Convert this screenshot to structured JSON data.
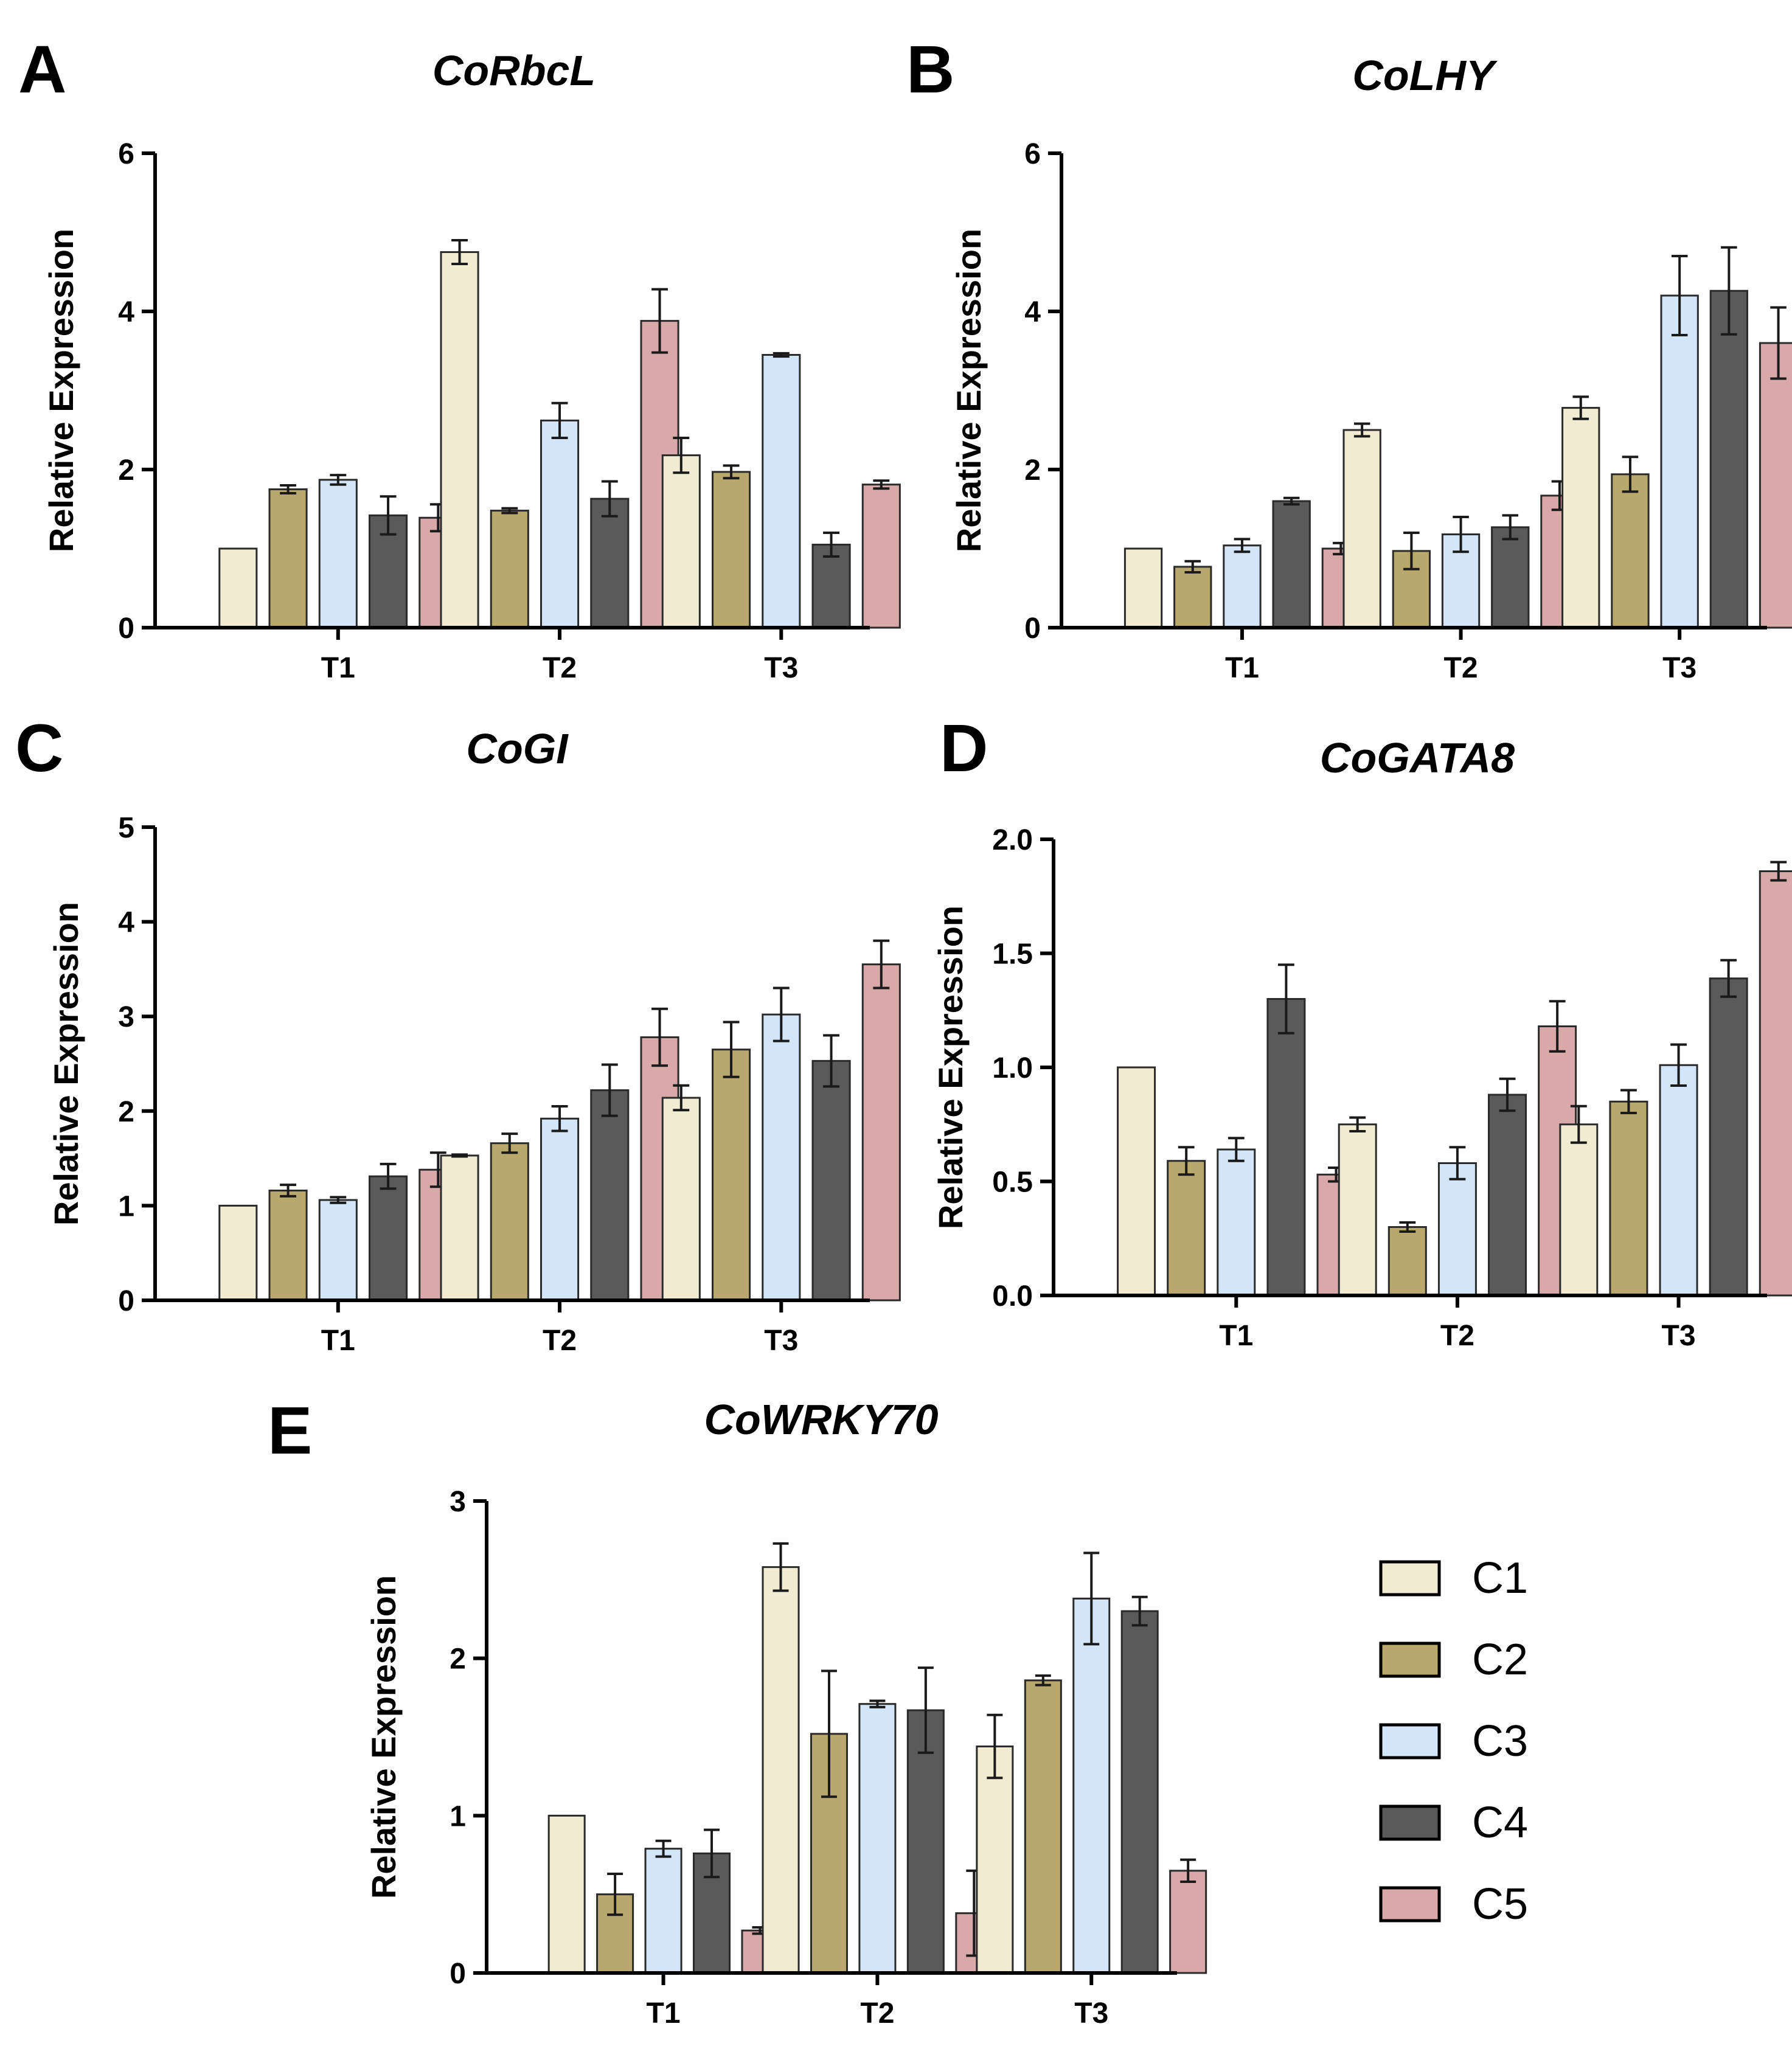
{
  "legend": {
    "entries": [
      {
        "label": "C1",
        "color": "#F1EBD2"
      },
      {
        "label": "C2",
        "color": "#B9A86C"
      },
      {
        "label": "C3",
        "color": "#D3E5F8"
      },
      {
        "label": "C4",
        "color": "#5A5A5A"
      },
      {
        "label": "C5",
        "color": "#D9A9A9"
      }
    ]
  },
  "chart_data": [
    {
      "panel": "A",
      "type": "bar",
      "title": "CoRbcL",
      "xlabel": "",
      "ylabel": "Relative Expression",
      "ylim": [
        0,
        6
      ],
      "yticks": [
        "0",
        "2",
        "4",
        "6"
      ],
      "yticks_values": [
        0,
        2,
        4,
        6
      ],
      "categories": [
        "T1",
        "T2",
        "T3"
      ],
      "series": [
        {
          "name": "C1",
          "values": [
            1.0,
            4.75,
            2.18
          ],
          "errors": [
            0,
            0.15,
            0.22
          ]
        },
        {
          "name": "C2",
          "values": [
            1.75,
            1.48,
            1.97
          ],
          "errors": [
            0.05,
            0.03,
            0.08
          ]
        },
        {
          "name": "C3",
          "values": [
            1.87,
            2.62,
            3.45
          ],
          "errors": [
            0.06,
            0.22,
            0.02
          ]
        },
        {
          "name": "C4",
          "values": [
            1.42,
            1.63,
            1.05
          ],
          "errors": [
            0.24,
            0.22,
            0.15
          ]
        },
        {
          "name": "C5",
          "values": [
            1.39,
            3.88,
            1.81
          ],
          "errors": [
            0.17,
            0.4,
            0.05
          ]
        }
      ]
    },
    {
      "panel": "B",
      "type": "bar",
      "title": "CoLHY",
      "xlabel": "",
      "ylabel": "Relative Expression",
      "ylim": [
        0,
        6
      ],
      "yticks": [
        "0",
        "2",
        "4",
        "6"
      ],
      "yticks_values": [
        0,
        2,
        4,
        6
      ],
      "categories": [
        "T1",
        "T2",
        "T3"
      ],
      "series": [
        {
          "name": "C1",
          "values": [
            1.0,
            2.5,
            2.78
          ],
          "errors": [
            0,
            0.08,
            0.14
          ]
        },
        {
          "name": "C2",
          "values": [
            0.77,
            0.97,
            1.94
          ],
          "errors": [
            0.07,
            0.23,
            0.22
          ]
        },
        {
          "name": "C3",
          "values": [
            1.04,
            1.18,
            4.2
          ],
          "errors": [
            0.08,
            0.22,
            0.5
          ]
        },
        {
          "name": "C4",
          "values": [
            1.6,
            1.27,
            4.26
          ],
          "errors": [
            0.04,
            0.15,
            0.55
          ]
        },
        {
          "name": "C5",
          "values": [
            1.0,
            1.67,
            3.6
          ],
          "errors": [
            0.07,
            0.18,
            0.45
          ]
        }
      ]
    },
    {
      "panel": "C",
      "type": "bar",
      "title": "CoGI",
      "xlabel": "",
      "ylabel": "Relative Expression",
      "ylim": [
        0,
        5
      ],
      "yticks": [
        "0",
        "1",
        "2",
        "3",
        "4",
        "5"
      ],
      "yticks_values": [
        0,
        1,
        2,
        3,
        4,
        5
      ],
      "categories": [
        "T1",
        "T2",
        "T3"
      ],
      "series": [
        {
          "name": "C1",
          "values": [
            1.0,
            1.53,
            2.14
          ],
          "errors": [
            0,
            0.01,
            0.13
          ]
        },
        {
          "name": "C2",
          "values": [
            1.16,
            1.66,
            2.65
          ],
          "errors": [
            0.06,
            0.1,
            0.29
          ]
        },
        {
          "name": "C3",
          "values": [
            1.06,
            1.92,
            3.02
          ],
          "errors": [
            0.03,
            0.13,
            0.28
          ]
        },
        {
          "name": "C4",
          "values": [
            1.31,
            2.22,
            2.53
          ],
          "errors": [
            0.13,
            0.27,
            0.27
          ]
        },
        {
          "name": "C5",
          "values": [
            1.38,
            2.78,
            3.55
          ],
          "errors": [
            0.18,
            0.3,
            0.25
          ]
        }
      ]
    },
    {
      "panel": "D",
      "type": "bar",
      "title": "CoGATA8",
      "xlabel": "",
      "ylabel": "Relative Expression",
      "ylim": [
        0,
        2
      ],
      "yticks": [
        "0.0",
        "0.5",
        "1.0",
        "1.5",
        "2.0"
      ],
      "yticks_values": [
        0,
        0.5,
        1.0,
        1.5,
        2.0
      ],
      "categories": [
        "T1",
        "T2",
        "T3"
      ],
      "series": [
        {
          "name": "C1",
          "values": [
            1.0,
            0.75,
            0.75
          ],
          "errors": [
            0,
            0.03,
            0.08
          ]
        },
        {
          "name": "C2",
          "values": [
            0.59,
            0.3,
            0.85
          ],
          "errors": [
            0.06,
            0.02,
            0.05
          ]
        },
        {
          "name": "C3",
          "values": [
            0.64,
            0.58,
            1.01
          ],
          "errors": [
            0.05,
            0.07,
            0.09
          ]
        },
        {
          "name": "C4",
          "values": [
            1.3,
            0.88,
            1.39
          ],
          "errors": [
            0.15,
            0.07,
            0.08
          ]
        },
        {
          "name": "C5",
          "values": [
            0.53,
            1.18,
            1.86
          ],
          "errors": [
            0.03,
            0.11,
            0.04
          ]
        }
      ]
    },
    {
      "panel": "E",
      "type": "bar",
      "title": "CoWRKY70",
      "xlabel": "",
      "ylabel": "Relative Expression",
      "ylim": [
        0,
        3
      ],
      "yticks": [
        "0",
        "1",
        "2",
        "3"
      ],
      "yticks_values": [
        0,
        1,
        2,
        3
      ],
      "categories": [
        "T1",
        "T2",
        "T3"
      ],
      "series": [
        {
          "name": "C1",
          "values": [
            1.0,
            2.58,
            1.44
          ],
          "errors": [
            0,
            0.15,
            0.2
          ]
        },
        {
          "name": "C2",
          "values": [
            0.5,
            1.52,
            1.86
          ],
          "errors": [
            0.13,
            0.4,
            0.03
          ]
        },
        {
          "name": "C3",
          "values": [
            0.79,
            1.71,
            2.38
          ],
          "errors": [
            0.05,
            0.02,
            0.29
          ]
        },
        {
          "name": "C4",
          "values": [
            0.76,
            1.67,
            2.3
          ],
          "errors": [
            0.15,
            0.27,
            0.09
          ]
        },
        {
          "name": "C5",
          "values": [
            0.27,
            0.38,
            0.65
          ],
          "errors": [
            0.02,
            0.27,
            0.07
          ]
        }
      ]
    }
  ]
}
